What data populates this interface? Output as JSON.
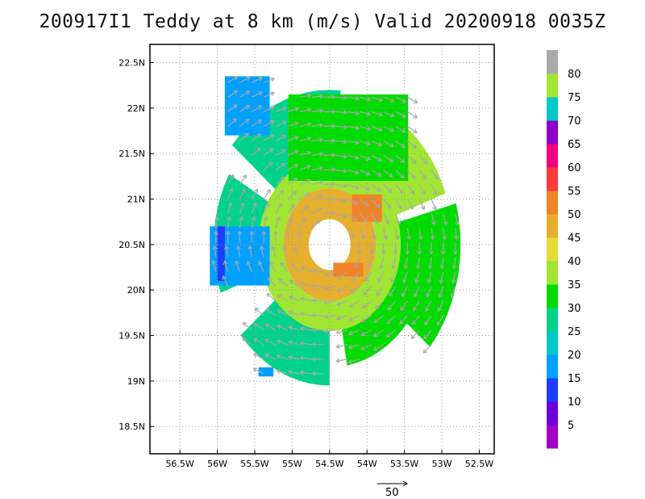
{
  "title": "200917I1 Teddy at 8 km (m/s) Valid 20200918 0035Z",
  "chart_data": {
    "type": "heatmap",
    "title": "200917I1 Teddy at 8 km (m/s) Valid 20200918 0035Z",
    "xlabel": "",
    "ylabel": "",
    "xlim": [
      -56.9,
      -52.3
    ],
    "ylim": [
      18.2,
      22.7
    ],
    "grid": true,
    "x_ticks": [
      {
        "value": -56.5,
        "label": "56.5W"
      },
      {
        "value": -56.0,
        "label": "56W"
      },
      {
        "value": -55.5,
        "label": "55.5W"
      },
      {
        "value": -55.0,
        "label": "55W"
      },
      {
        "value": -54.5,
        "label": "54.5W"
      },
      {
        "value": -54.0,
        "label": "54W"
      },
      {
        "value": -53.5,
        "label": "53.5W"
      },
      {
        "value": -53.0,
        "label": "53W"
      },
      {
        "value": -52.5,
        "label": "52.5W"
      }
    ],
    "y_ticks": [
      {
        "value": 18.5,
        "label": "18.5N"
      },
      {
        "value": 19.0,
        "label": "19N"
      },
      {
        "value": 19.5,
        "label": "19.5N"
      },
      {
        "value": 20.0,
        "label": "20N"
      },
      {
        "value": 20.5,
        "label": "20.5N"
      },
      {
        "value": 21.0,
        "label": "21N"
      },
      {
        "value": 21.5,
        "label": "21.5N"
      },
      {
        "value": 22.0,
        "label": "22N"
      },
      {
        "value": 22.5,
        "label": "22.5N"
      }
    ],
    "colorbar": {
      "labels": [
        "5",
        "10",
        "15",
        "20",
        "25",
        "30",
        "35",
        "40",
        "45",
        "50",
        "55",
        "60",
        "65",
        "70",
        "75",
        "80"
      ],
      "colors": [
        "#a000c8",
        "#6e00dc",
        "#1e3cff",
        "#00a0ff",
        "#00c8c8",
        "#00d28c",
        "#00dc00",
        "#a0e632",
        "#e6dc32",
        "#e6af2d",
        "#f08228",
        "#fa3c3c",
        "#f00082",
        "#8c00c8",
        "#00c8c8",
        "#a0e632",
        "#aaaaaa"
      ]
    },
    "storm_center": {
      "lon": -54.55,
      "lat": 20.52
    },
    "vector_key": {
      "label": "50",
      "value": 50
    },
    "regions": [
      {
        "shape": "circle-band",
        "lon": -54.5,
        "lat": 20.5,
        "r_min": 0.28,
        "r_max": 0.62,
        "value": 45
      },
      {
        "shape": "circle-band",
        "lon": -54.5,
        "lat": 20.5,
        "r_min": 0.62,
        "r_max": 0.95,
        "value": 38
      },
      {
        "shape": "sector",
        "lon": -54.5,
        "lat": 20.5,
        "r_min": 0.95,
        "r_max": 1.75,
        "a0": -40,
        "a1": 15,
        "value": 30
      },
      {
        "shape": "sector",
        "lon": -54.5,
        "lat": 20.5,
        "r_min": 0.95,
        "r_max": 1.65,
        "a0": 20,
        "a1": 75,
        "value": 38
      },
      {
        "shape": "sector",
        "lon": -54.5,
        "lat": 20.5,
        "r_min": 0.95,
        "r_max": 1.7,
        "a0": 85,
        "a1": 140,
        "value": 28
      },
      {
        "shape": "sector",
        "lon": -54.5,
        "lat": 20.5,
        "r_min": 0.95,
        "r_max": 1.55,
        "a0": 150,
        "a1": 200,
        "value": 25
      },
      {
        "shape": "sector",
        "lon": -54.5,
        "lat": 20.5,
        "r_min": 0.95,
        "r_max": 1.55,
        "a0": 220,
        "a1": 270,
        "value": 25
      },
      {
        "shape": "sector",
        "lon": -54.5,
        "lat": 20.5,
        "r_min": 0.95,
        "r_max": 1.35,
        "a0": 280,
        "a1": 330,
        "value": 32
      },
      {
        "shape": "rect",
        "lon0": -56.1,
        "lon1": -55.3,
        "lat0": 20.05,
        "lat1": 20.7,
        "value": 18
      },
      {
        "shape": "rect",
        "lon0": -56.0,
        "lon1": -55.9,
        "lat0": 20.1,
        "lat1": 20.7,
        "value": 10
      },
      {
        "shape": "rect",
        "lon0": -55.9,
        "lon1": -55.3,
        "lat0": 21.7,
        "lat1": 22.35,
        "value": 16
      },
      {
        "shape": "rect",
        "lon0": -55.05,
        "lon1": -53.45,
        "lat0": 21.2,
        "lat1": 22.15,
        "value": 30
      },
      {
        "shape": "rect",
        "lon0": -55.45,
        "lon1": -55.25,
        "lat0": 19.05,
        "lat1": 19.15,
        "value": 16
      },
      {
        "shape": "rect",
        "lon0": -54.2,
        "lon1": -53.8,
        "lat0": 20.75,
        "lat1": 21.05,
        "value": 52
      },
      {
        "shape": "rect",
        "lon0": -54.45,
        "lon1": -54.05,
        "lat0": 20.15,
        "lat1": 20.3,
        "value": 52
      }
    ]
  }
}
